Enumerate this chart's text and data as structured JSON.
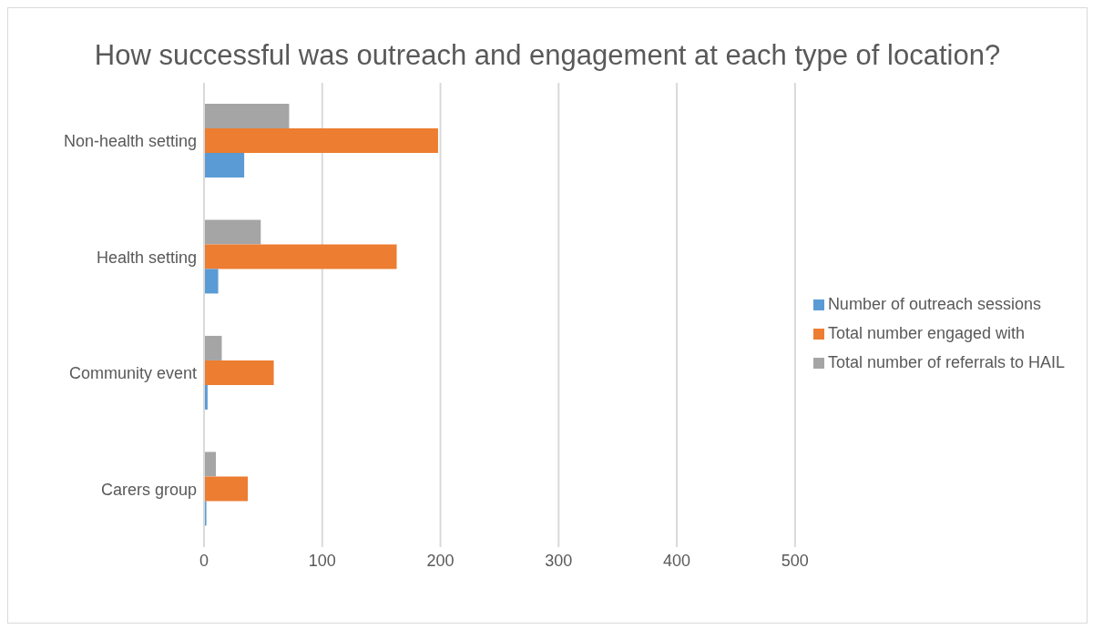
{
  "chart_data": {
    "type": "bar",
    "orientation": "horizontal",
    "title": "How successful was outreach and engagement at each type of location?",
    "categories": [
      "Non-health setting",
      "Health setting",
      "Community event",
      "Carers group"
    ],
    "series": [
      {
        "name": "Total number of referrals to HAIL",
        "color": "#a5a5a5",
        "values": [
          72,
          48,
          15,
          10
        ]
      },
      {
        "name": "Total number engaged with",
        "color": "#ed7d31",
        "values": [
          198,
          163,
          59,
          37
        ]
      },
      {
        "name": "Number of outreach sessions",
        "color": "#5b9bd5",
        "values": [
          34,
          12,
          3,
          2
        ]
      }
    ],
    "xlim": [
      0,
      500
    ],
    "xticks": [
      0,
      100,
      200,
      300,
      400,
      500
    ],
    "grid": "x",
    "legend": "right"
  }
}
